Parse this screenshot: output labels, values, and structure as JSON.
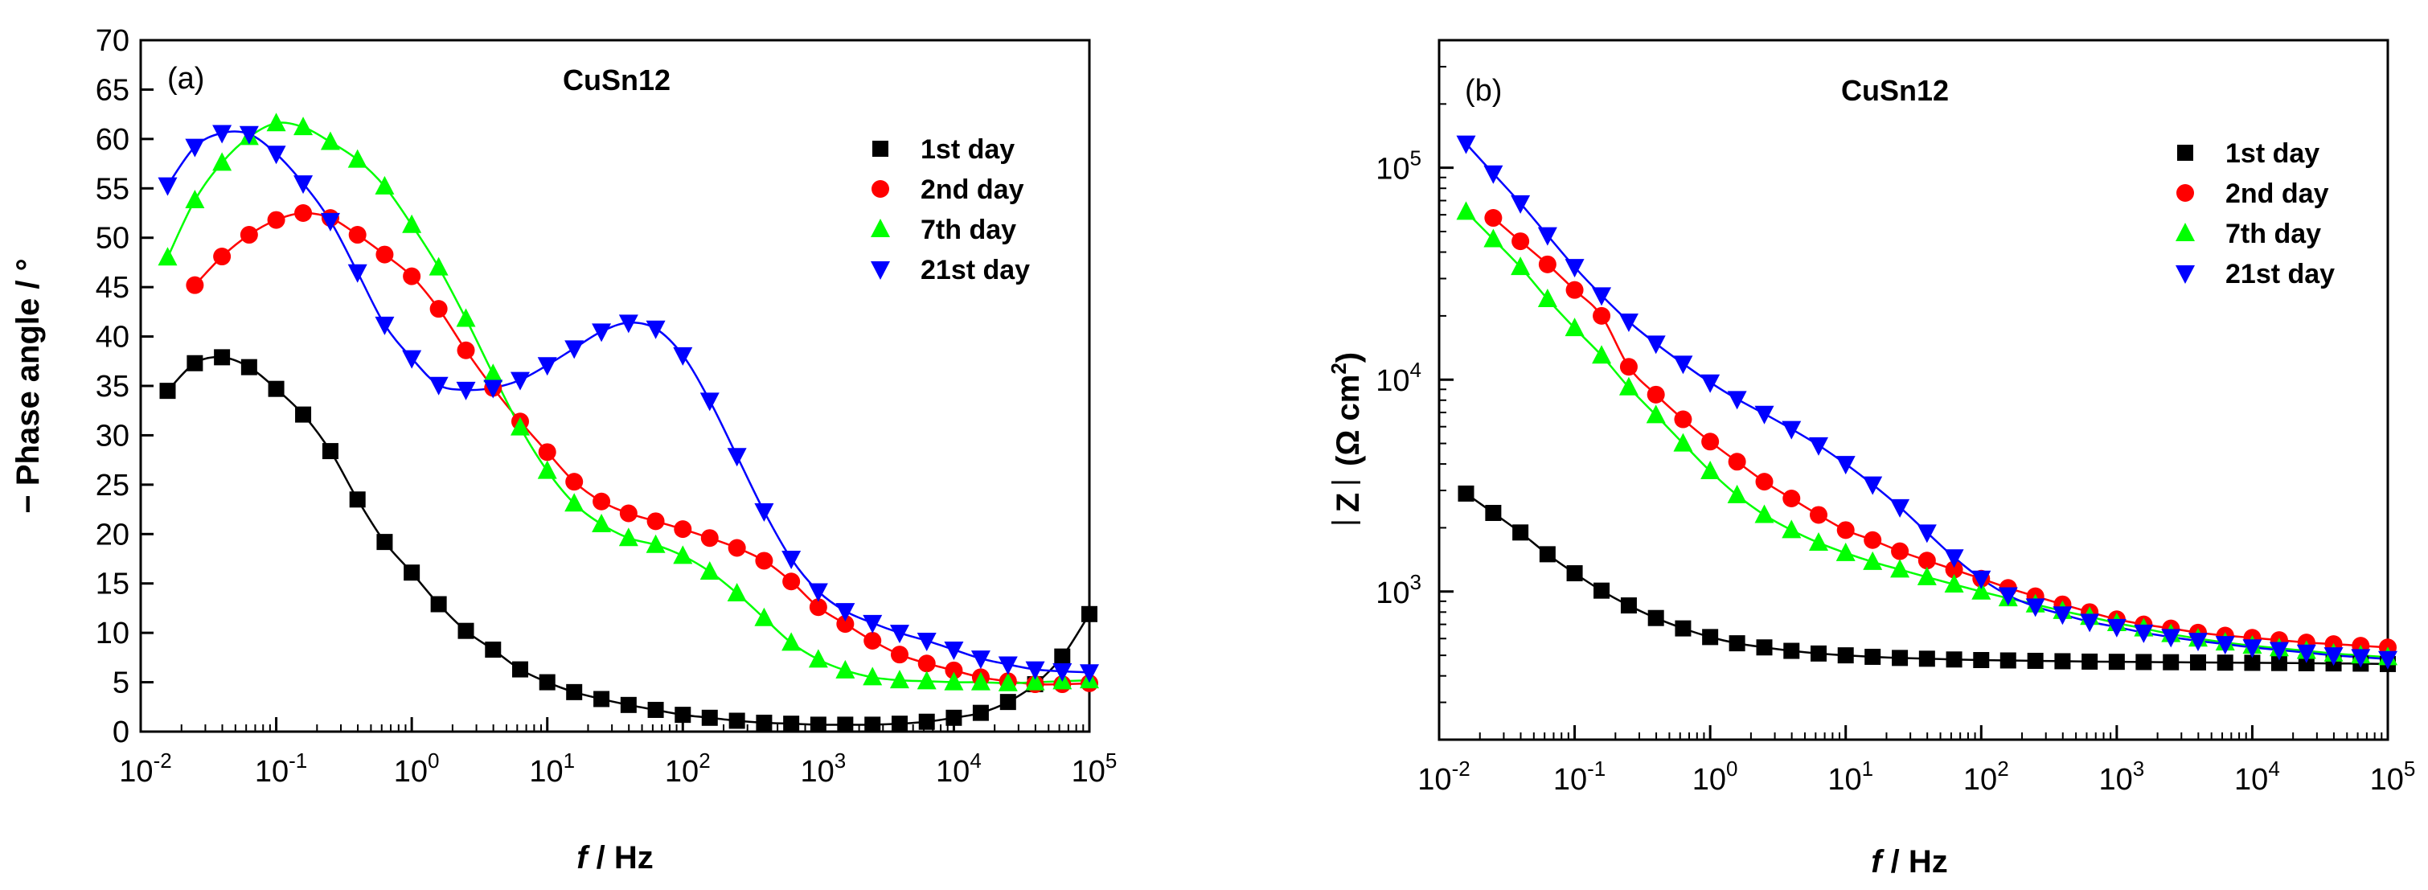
{
  "figure": {
    "panels": [
      "(a)",
      "(b)"
    ]
  },
  "chart_data": [
    {
      "type": "scatter",
      "panel_label": "(a)",
      "title": "CuSn12",
      "xlabel_italic": "f",
      "xlabel_rest": " / Hz",
      "ylabel": "− Phase angle / °",
      "xscale": "log",
      "xlim": [
        0.01,
        100000
      ],
      "ylim": [
        0,
        70
      ],
      "x_ticks": [
        0.01,
        0.1,
        1,
        10,
        100,
        1000,
        10000,
        100000
      ],
      "x_tick_labels": [
        [
          "10",
          "-2"
        ],
        [
          "10",
          "-1"
        ],
        [
          "10",
          "0"
        ],
        [
          "10",
          "1"
        ],
        [
          "10",
          "2"
        ],
        [
          "10",
          "3"
        ],
        [
          "10",
          "4"
        ],
        [
          "10",
          "5"
        ]
      ],
      "y_ticks": [
        0,
        5,
        10,
        15,
        20,
        25,
        30,
        35,
        40,
        45,
        50,
        55,
        60,
        65,
        70
      ],
      "y_tick_labels": [
        "0",
        "5",
        "10",
        "15",
        "20",
        "25",
        "30",
        "35",
        "40",
        "45",
        "50",
        "55",
        "60",
        "65",
        "70"
      ],
      "legend_position": "top-right",
      "series": [
        {
          "name": "1st day",
          "color": "#000000",
          "marker": "square",
          "x": [
            0.0158,
            0.0251,
            0.0398,
            0.0631,
            0.1,
            0.158,
            0.251,
            0.398,
            0.631,
            1,
            1.58,
            2.51,
            3.98,
            6.31,
            10,
            15.8,
            25.1,
            39.8,
            63.1,
            100,
            158,
            251,
            398,
            631,
            1000,
            1580,
            2510,
            3980,
            6310,
            10000,
            15800,
            25100,
            39800,
            63100,
            100000
          ],
          "y": [
            34.5,
            37.3,
            37.9,
            36.9,
            34.7,
            32.1,
            28.4,
            23.5,
            19.2,
            16.1,
            12.9,
            10.2,
            8.3,
            6.3,
            5.0,
            4.0,
            3.3,
            2.7,
            2.2,
            1.7,
            1.4,
            1.1,
            0.9,
            0.8,
            0.7,
            0.7,
            0.7,
            0.8,
            1.0,
            1.4,
            1.9,
            3.0,
            4.8,
            7.6,
            11.9
          ]
        },
        {
          "name": "2nd day",
          "color": "#ff0000",
          "marker": "circle",
          "x": [
            0.0251,
            0.0398,
            0.0631,
            0.1,
            0.158,
            0.251,
            0.398,
            0.631,
            1,
            1.58,
            2.51,
            3.98,
            6.31,
            10,
            15.8,
            25.1,
            39.8,
            63.1,
            100,
            158,
            251,
            398,
            631,
            1000,
            1580,
            2510,
            3980,
            6310,
            10000,
            15800,
            25100,
            39800,
            63100,
            100000
          ],
          "y": [
            45.2,
            48.1,
            50.3,
            51.8,
            52.5,
            52.0,
            50.3,
            48.3,
            46.1,
            42.8,
            38.6,
            34.8,
            31.4,
            28.3,
            25.3,
            23.3,
            22.1,
            21.3,
            20.5,
            19.6,
            18.6,
            17.3,
            15.2,
            12.6,
            10.9,
            9.2,
            7.8,
            6.9,
            6.2,
            5.5,
            5.1,
            4.8,
            4.8,
            4.9
          ]
        },
        {
          "name": "7th day",
          "color": "#00ff00",
          "marker": "triangle-up",
          "x": [
            0.0158,
            0.0251,
            0.0398,
            0.0631,
            0.1,
            0.158,
            0.251,
            0.398,
            0.631,
            1,
            1.58,
            2.51,
            3.98,
            6.31,
            10,
            15.8,
            25.1,
            39.8,
            63.1,
            100,
            158,
            251,
            398,
            631,
            1000,
            1580,
            2510,
            3980,
            6310,
            10000,
            15800,
            25100,
            39800,
            63100,
            100000
          ],
          "y": [
            48.0,
            53.8,
            57.6,
            60.2,
            61.6,
            61.2,
            59.7,
            57.9,
            55.2,
            51.3,
            47.0,
            41.8,
            36.2,
            30.8,
            26.4,
            23.1,
            21.0,
            19.6,
            18.9,
            17.8,
            16.2,
            14.0,
            11.5,
            9.0,
            7.3,
            6.2,
            5.5,
            5.2,
            5.1,
            5.0,
            5.0,
            4.9,
            5.0,
            5.1,
            5.2
          ]
        },
        {
          "name": "21st day",
          "color": "#0000ff",
          "marker": "triangle-down",
          "x": [
            0.0158,
            0.0251,
            0.0398,
            0.0631,
            0.1,
            0.158,
            0.251,
            0.398,
            0.631,
            1,
            1.58,
            2.51,
            3.98,
            6.31,
            10,
            15.8,
            25.1,
            39.8,
            63.1,
            100,
            158,
            251,
            398,
            631,
            1000,
            1580,
            2510,
            3980,
            6310,
            10000,
            15800,
            25100,
            39800,
            63100,
            100000
          ],
          "y": [
            55.3,
            59.2,
            60.6,
            60.5,
            58.5,
            55.5,
            51.7,
            46.5,
            41.2,
            37.8,
            35.1,
            34.6,
            34.8,
            35.6,
            37.1,
            38.8,
            40.5,
            41.4,
            40.8,
            38.1,
            33.5,
            27.9,
            22.3,
            17.5,
            14.2,
            12.2,
            11.0,
            10.0,
            9.2,
            8.3,
            7.4,
            6.8,
            6.3,
            6.1,
            6.0
          ]
        }
      ]
    },
    {
      "type": "scatter",
      "panel_label": "(b)",
      "title": "CuSn12",
      "xlabel_italic": "f",
      "xlabel_rest": " / Hz",
      "ylabel_z": "Z",
      "ylabel_unit_open": "(Ω cm",
      "ylabel_unit_sup": "2",
      "ylabel_unit_close": ")",
      "xscale": "log",
      "yscale": "log",
      "xlim": [
        0.01,
        100000
      ],
      "ylim": [
        200,
        400000
      ],
      "x_ticks": [
        0.01,
        0.1,
        1,
        10,
        100,
        1000,
        10000,
        100000
      ],
      "x_tick_labels": [
        [
          "10",
          "-2"
        ],
        [
          "10",
          "-1"
        ],
        [
          "10",
          "0"
        ],
        [
          "10",
          "1"
        ],
        [
          "10",
          "2"
        ],
        [
          "10",
          "3"
        ],
        [
          "10",
          "4"
        ],
        [
          "10",
          "5"
        ]
      ],
      "y_ticks": [
        1000,
        10000,
        100000
      ],
      "y_tick_labels": [
        [
          "10",
          "3"
        ],
        [
          "10",
          "4"
        ],
        [
          "10",
          "5"
        ]
      ],
      "legend_position": "top-right",
      "series": [
        {
          "name": "1st day",
          "color": "#000000",
          "marker": "square",
          "x": [
            0.0158,
            0.0251,
            0.0398,
            0.0631,
            0.1,
            0.158,
            0.251,
            0.398,
            0.631,
            1,
            1.58,
            2.51,
            3.98,
            6.31,
            10,
            15.8,
            25.1,
            39.8,
            63.1,
            100,
            158,
            251,
            398,
            631,
            1000,
            1580,
            2510,
            3980,
            6310,
            10000,
            15800,
            25100,
            39800,
            63100,
            100000
          ],
          "y": [
            2900,
            2350,
            1900,
            1500,
            1220,
            1010,
            860,
            750,
            670,
            610,
            570,
            545,
            525,
            510,
            500,
            492,
            486,
            482,
            478,
            475,
            473,
            471,
            469,
            467,
            466,
            465,
            464,
            463,
            462,
            461,
            460,
            459,
            458,
            457,
            455
          ]
        },
        {
          "name": "2nd day",
          "color": "#ff0000",
          "marker": "circle",
          "x": [
            0.0251,
            0.0398,
            0.0631,
            0.1,
            0.158,
            0.251,
            0.398,
            0.631,
            1,
            1.58,
            2.51,
            3.98,
            6.31,
            10,
            15.8,
            25.1,
            39.8,
            63.1,
            100,
            158,
            251,
            398,
            631,
            1000,
            1580,
            2510,
            3980,
            6310,
            10000,
            15800,
            25100,
            39800,
            63100,
            100000
          ],
          "y": [
            58000,
            45000,
            35000,
            26500,
            20000,
            11500,
            8500,
            6500,
            5100,
            4100,
            3300,
            2750,
            2300,
            1950,
            1750,
            1550,
            1400,
            1270,
            1150,
            1040,
            950,
            870,
            800,
            740,
            700,
            670,
            640,
            620,
            605,
            590,
            575,
            565,
            555,
            545
          ]
        },
        {
          "name": "7th day",
          "color": "#00ff00",
          "marker": "triangle-up",
          "x": [
            0.0158,
            0.0251,
            0.0398,
            0.0631,
            0.1,
            0.158,
            0.251,
            0.398,
            0.631,
            1,
            1.58,
            2.51,
            3.98,
            6.31,
            10,
            15.8,
            25.1,
            39.8,
            63.1,
            100,
            158,
            251,
            398,
            631,
            1000,
            1580,
            2510,
            3980,
            6310,
            10000,
            15800,
            25100,
            39800,
            63100,
            100000
          ],
          "y": [
            62000,
            46000,
            34000,
            24000,
            17500,
            13000,
            9200,
            6800,
            5000,
            3700,
            2850,
            2300,
            1950,
            1700,
            1520,
            1380,
            1270,
            1170,
            1080,
            1000,
            930,
            870,
            810,
            760,
            710,
            670,
            630,
            600,
            575,
            555,
            540,
            525,
            510,
            500,
            490
          ]
        },
        {
          "name": "21st day",
          "color": "#0000ff",
          "marker": "triangle-down",
          "x": [
            0.0158,
            0.0251,
            0.0398,
            0.0631,
            0.1,
            0.158,
            0.251,
            0.398,
            0.631,
            1,
            1.58,
            2.51,
            3.98,
            6.31,
            10,
            15.8,
            25.1,
            39.8,
            63.1,
            100,
            158,
            251,
            398,
            631,
            1000,
            1580,
            2510,
            3980,
            6310,
            10000,
            15800,
            25100,
            39800,
            63100,
            100000
          ],
          "y": [
            130000,
            94000,
            68000,
            48000,
            34000,
            25000,
            18800,
            14800,
            11900,
            9700,
            8100,
            6900,
            5850,
            4900,
            4000,
            3200,
            2500,
            1900,
            1450,
            1150,
            960,
            850,
            780,
            720,
            680,
            640,
            610,
            585,
            565,
            545,
            530,
            515,
            500,
            490,
            480
          ]
        }
      ]
    }
  ]
}
